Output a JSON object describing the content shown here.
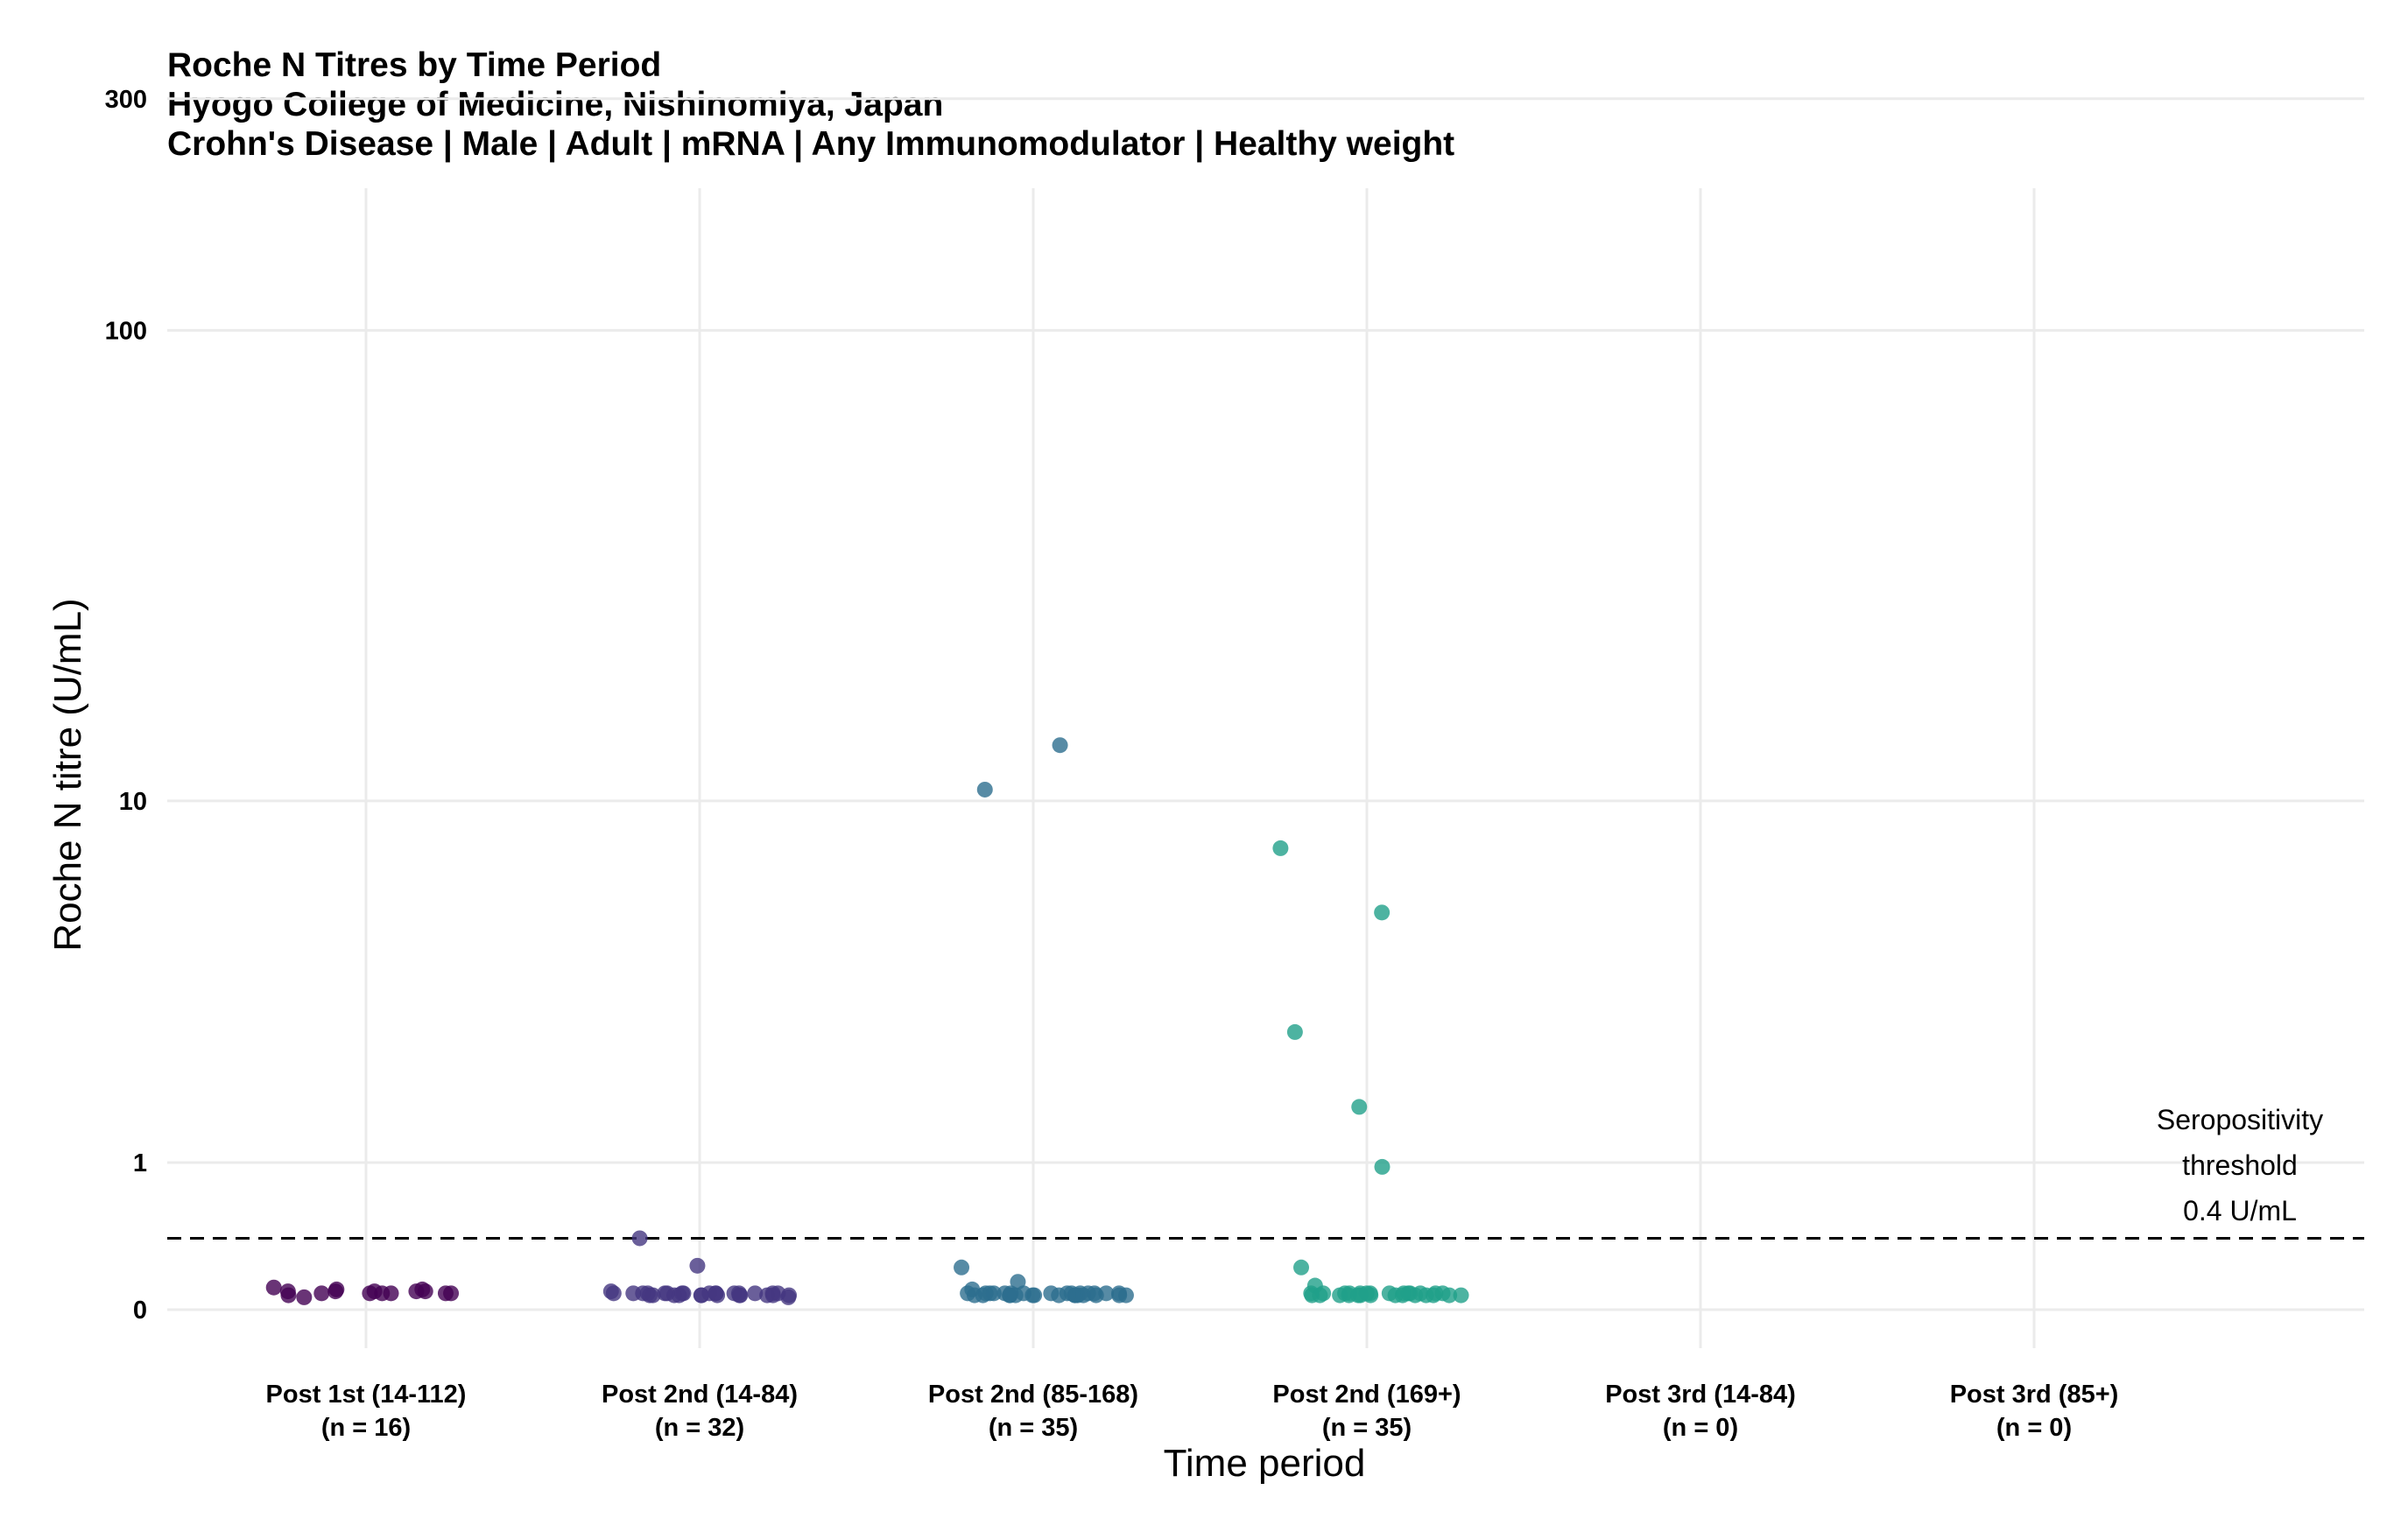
{
  "chart_data": {
    "type": "scatter",
    "title": "Roche N Titres by Time Period",
    "subtitle": [
      "Hyogo College of Medicine, Nishinomiya, Japan",
      "Crohn's Disease | Male | Adult | mRNA | Any Immunomodulator | Healthy weight"
    ],
    "xlabel": "Time period",
    "ylabel": "Roche N titre (U/mL)",
    "y_scale": "pseudo-log",
    "y_ticks": [
      0,
      1,
      10,
      100,
      300
    ],
    "y_tick_labels": [
      "0",
      "1",
      "10",
      "100",
      "300"
    ],
    "grid": true,
    "categories": [
      {
        "label": "Post 1st (14-112)",
        "n": "(n = 16)",
        "color": "#440154"
      },
      {
        "label": "Post 2nd (14-84)",
        "n": "(n = 32)",
        "color": "#453781"
      },
      {
        "label": "Post 2nd (85-168)",
        "n": "(n = 35)",
        "color": "#2d6e8e"
      },
      {
        "label": "Post 2nd (169+)",
        "n": "(n = 35)",
        "color": "#21a08a"
      },
      {
        "label": "Post 3rd (14-84)",
        "n": "(n = 0)",
        "color": "#5dc863"
      },
      {
        "label": "Post 3rd (85+)",
        "n": "(n = 0)",
        "color": "#b8de29"
      }
    ],
    "series": [
      {
        "category": "Post 1st (14-112)",
        "values": [
          0.11,
          0.09,
          0.07,
          0.06,
          0.08,
          0.09,
          0.1,
          0.08,
          0.09,
          0.08,
          0.08,
          0.09,
          0.09,
          0.1,
          0.08,
          0.08
        ]
      },
      {
        "category": "Post 2nd (14-84)",
        "values": [
          0.4,
          0.23,
          0.09,
          0.08,
          0.08,
          0.07,
          0.08,
          0.08,
          0.08,
          0.07,
          0.08,
          0.07,
          0.08,
          0.07,
          0.08,
          0.08,
          0.07,
          0.07,
          0.08,
          0.08,
          0.07,
          0.07,
          0.08,
          0.07,
          0.08,
          0.07,
          0.08,
          0.08,
          0.07,
          0.08,
          0.06,
          0.07
        ]
      },
      {
        "category": "Post 2nd (85-168)",
        "values": [
          13.3,
          10.6,
          0.22,
          0.14,
          0.08,
          0.1,
          0.08,
          0.07,
          0.07,
          0.08,
          0.08,
          0.07,
          0.08,
          0.07,
          0.08,
          0.07,
          0.07,
          0.08,
          0.07,
          0.08,
          0.07,
          0.08,
          0.08,
          0.07,
          0.07,
          0.08,
          0.07,
          0.07,
          0.08,
          0.08,
          0.07,
          0.08,
          0.07,
          0.07,
          0.08
        ]
      },
      {
        "category": "Post 2nd (169+)",
        "values": [
          7.8,
          5.5,
          2.7,
          1.6,
          0.96,
          0.22,
          0.12,
          0.08,
          0.07,
          0.08,
          0.07,
          0.07,
          0.08,
          0.08,
          0.07,
          0.07,
          0.08,
          0.07,
          0.08,
          0.08,
          0.07,
          0.08,
          0.07,
          0.08,
          0.07,
          0.08,
          0.08,
          0.07,
          0.07,
          0.08,
          0.07,
          0.08,
          0.08,
          0.07,
          0.07
        ]
      },
      {
        "category": "Post 3rd (14-84)",
        "values": []
      },
      {
        "category": "Post 3rd (85+)",
        "values": []
      }
    ],
    "threshold": {
      "value": 0.4,
      "label_lines": [
        "Seropositivity",
        "threshold",
        "0.4 U/mL"
      ]
    }
  }
}
